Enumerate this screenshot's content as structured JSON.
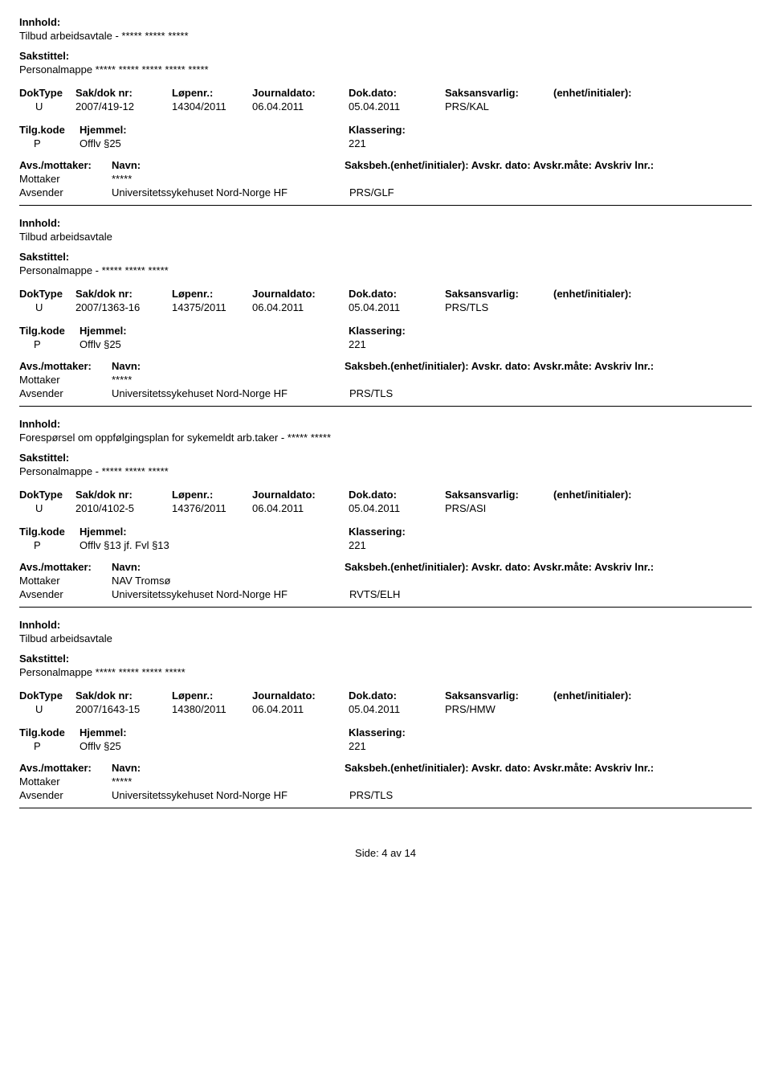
{
  "labels": {
    "innhold": "Innhold:",
    "sakstittel": "Sakstittel:",
    "doktype": "DokType",
    "sakdoknr": "Sak/dok nr:",
    "lopenr": "Løpenr.:",
    "journaldato": "Journaldato:",
    "dokdato": "Dok.dato:",
    "saksansvarlig": "Saksansvarlig:",
    "enhet": "(enhet/initialer):",
    "tilgkode": "Tilg.kode",
    "hjemmel": "Hjemmel:",
    "klassering": "Klassering:",
    "avsmottaker": "Avs./mottaker:",
    "navn": "Navn:",
    "saksbeh_line": "Saksbeh.(enhet/initialer): Avskr. dato:   Avskr.måte:  Avskriv lnr.:",
    "mottaker": "Mottaker",
    "avsender": "Avsender"
  },
  "entries": [
    {
      "innhold": "Tilbud arbeidsavtale - ***** ***** *****",
      "sakstittel": "Personalmappe ***** ***** ***** ***** *****",
      "doktype": "U",
      "sakdoknr": "2007/419-12",
      "lopenr": "14304/2011",
      "journaldato": "06.04.2011",
      "dokdato": "05.04.2011",
      "saksansvarlig": "PRS/KAL",
      "tilgkode": "P",
      "hjemmel": "Offlv §25",
      "klassering": "221",
      "mottaker_navn": "*****",
      "avsender_navn": "Universitetssykehuset Nord-Norge HF",
      "avsender_code": "PRS/GLF"
    },
    {
      "innhold": "Tilbud arbeidsavtale",
      "sakstittel": "Personalmappe - ***** ***** *****",
      "doktype": "U",
      "sakdoknr": "2007/1363-16",
      "lopenr": "14375/2011",
      "journaldato": "06.04.2011",
      "dokdato": "05.04.2011",
      "saksansvarlig": "PRS/TLS",
      "tilgkode": "P",
      "hjemmel": "Offlv §25",
      "klassering": "221",
      "mottaker_navn": "*****",
      "avsender_navn": "Universitetssykehuset Nord-Norge HF",
      "avsender_code": "PRS/TLS"
    },
    {
      "innhold": "Forespørsel om oppfølgingsplan for sykemeldt arb.taker - ***** *****",
      "sakstittel": "Personalmappe - ***** ***** *****",
      "doktype": "U",
      "sakdoknr": "2010/4102-5",
      "lopenr": "14376/2011",
      "journaldato": "06.04.2011",
      "dokdato": "05.04.2011",
      "saksansvarlig": "PRS/ASI",
      "tilgkode": "P",
      "hjemmel": "Offlv §13 jf. Fvl §13",
      "klassering": "221",
      "mottaker_navn": "NAV Tromsø",
      "avsender_navn": "Universitetssykehuset Nord-Norge HF",
      "avsender_code": "RVTS/ELH"
    },
    {
      "innhold": "Tilbud arbeidsavtale",
      "sakstittel": "Personalmappe ***** ***** ***** *****",
      "doktype": "U",
      "sakdoknr": "2007/1643-15",
      "lopenr": "14380/2011",
      "journaldato": "06.04.2011",
      "dokdato": "05.04.2011",
      "saksansvarlig": "PRS/HMW",
      "tilgkode": "P",
      "hjemmel": "Offlv §25",
      "klassering": "221",
      "mottaker_navn": "*****",
      "avsender_navn": "Universitetssykehuset Nord-Norge HF",
      "avsender_code": "PRS/TLS"
    }
  ],
  "footer": "Side: 4 av 14"
}
